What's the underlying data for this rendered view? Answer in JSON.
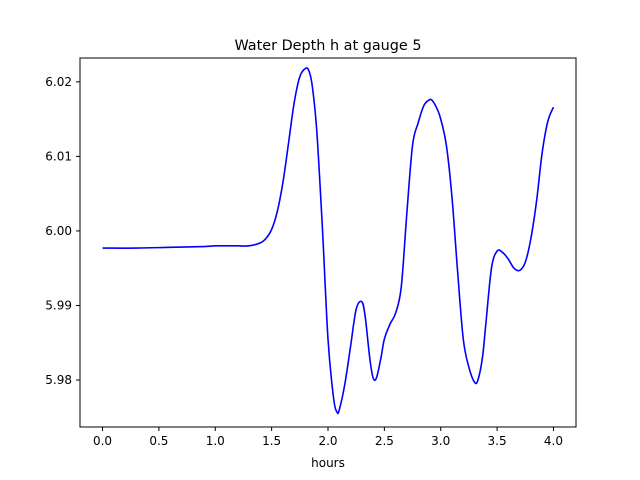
{
  "chart_data": {
    "type": "line",
    "title": "Water Depth h at gauge 5",
    "xlabel": "hours",
    "ylabel": "",
    "xlim": [
      -0.2,
      4.2
    ],
    "ylim": [
      5.9737,
      6.0232
    ],
    "xticks": [
      "0.0",
      "0.5",
      "1.0",
      "1.5",
      "2.0",
      "2.5",
      "3.0",
      "3.5",
      "4.0"
    ],
    "yticks": [
      "5.98",
      "5.99",
      "6.00",
      "6.01",
      "6.02"
    ],
    "grid": false,
    "series": [
      {
        "color": "#0000ff",
        "x": [
          0.0,
          0.3,
          0.6,
          0.9,
          1.0,
          1.1,
          1.2,
          1.3,
          1.4,
          1.45,
          1.5,
          1.55,
          1.6,
          1.65,
          1.7,
          1.75,
          1.8,
          1.83,
          1.86,
          1.9,
          1.95,
          2.0,
          2.05,
          2.08,
          2.1,
          2.15,
          2.2,
          2.25,
          2.3,
          2.33,
          2.37,
          2.4,
          2.43,
          2.47,
          2.5,
          2.55,
          2.6,
          2.65,
          2.7,
          2.75,
          2.8,
          2.85,
          2.9,
          2.93,
          2.97,
          3.0,
          3.05,
          3.1,
          3.15,
          3.2,
          3.25,
          3.3,
          3.33,
          3.37,
          3.4,
          3.45,
          3.5,
          3.55,
          3.6,
          3.65,
          3.7,
          3.75,
          3.8,
          3.85,
          3.9,
          3.95,
          4.0
        ],
        "y": [
          5.9977,
          5.9977,
          5.9978,
          5.9979,
          5.998,
          5.998,
          5.998,
          5.998,
          5.9984,
          5.999,
          6.0002,
          6.0026,
          6.0065,
          6.0118,
          6.0172,
          6.0207,
          6.0218,
          6.0215,
          6.0195,
          6.0135,
          6.0005,
          5.9855,
          5.9775,
          5.9757,
          5.976,
          5.9795,
          5.9845,
          5.9895,
          5.9905,
          5.9885,
          5.983,
          5.9803,
          5.9803,
          5.983,
          5.9855,
          5.9875,
          5.989,
          5.9925,
          6.0025,
          6.0115,
          6.0145,
          6.0168,
          6.0176,
          6.0174,
          6.0163,
          6.015,
          6.0115,
          6.0045,
          5.9945,
          5.9855,
          5.9817,
          5.9797,
          5.98,
          5.983,
          5.9875,
          5.995,
          5.9973,
          5.9971,
          5.9962,
          5.995,
          5.9947,
          5.9958,
          5.999,
          6.004,
          6.0105,
          6.0147,
          6.0166
        ]
      }
    ]
  }
}
